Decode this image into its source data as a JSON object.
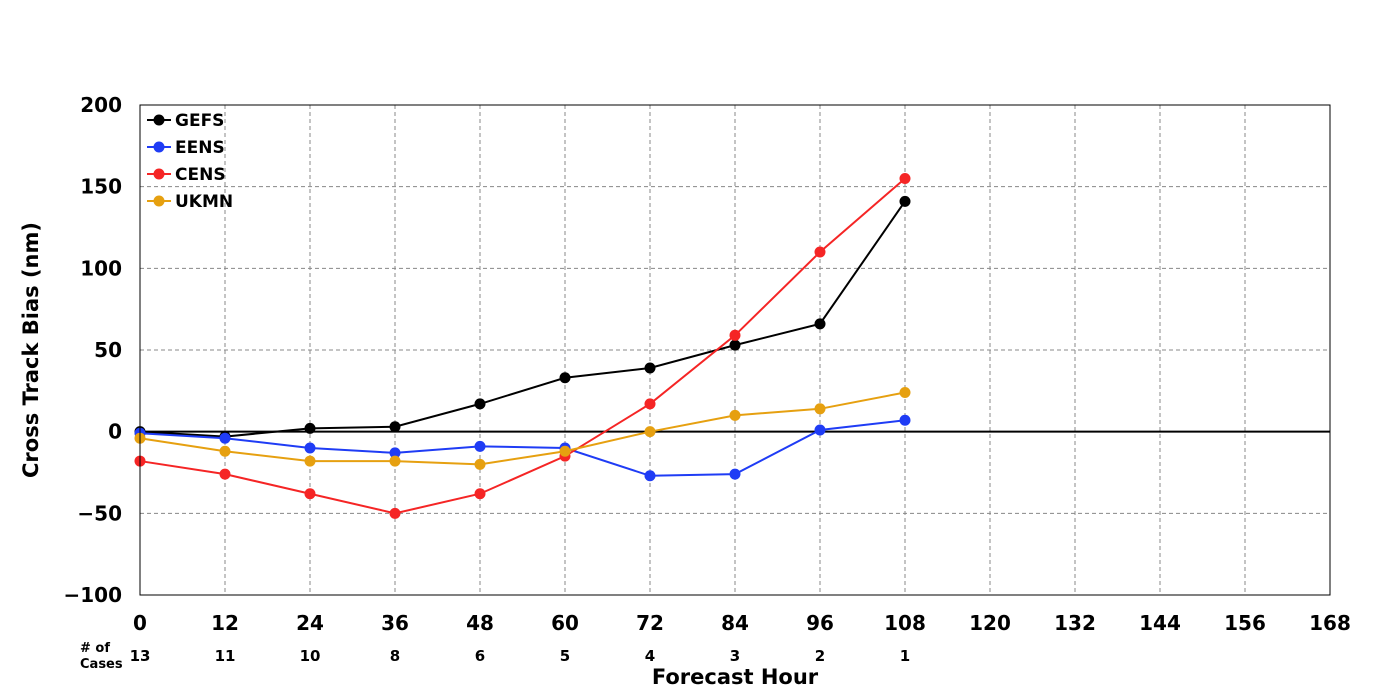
{
  "chart_data": {
    "type": "line",
    "title": "",
    "xlabel": "Forecast Hour",
    "ylabel": "Cross Track Bias (nm)",
    "xlim": [
      0,
      168
    ],
    "ylim": [
      -100,
      200
    ],
    "x_ticks": [
      0,
      12,
      24,
      36,
      48,
      60,
      72,
      84,
      96,
      108,
      120,
      132,
      144,
      156,
      168
    ],
    "y_ticks": [
      -100,
      -50,
      0,
      50,
      100,
      150,
      200
    ],
    "grid": true,
    "legend_position": "top-left",
    "x": [
      0,
      12,
      24,
      36,
      48,
      60,
      72,
      84,
      96,
      108
    ],
    "series": [
      {
        "name": "GEFS",
        "color": "#000000",
        "values": [
          0,
          -3,
          2,
          3,
          17,
          33,
          39,
          53,
          66,
          141
        ]
      },
      {
        "name": "EENS",
        "color": "#1f3cf5",
        "values": [
          -1,
          -4,
          -10,
          -13,
          -9,
          -10,
          -27,
          -26,
          1,
          7
        ]
      },
      {
        "name": "CENS",
        "color": "#f52525",
        "values": [
          -18,
          -26,
          -38,
          -50,
          -38,
          -15,
          17,
          59,
          110,
          155
        ]
      },
      {
        "name": "UKMN",
        "color": "#e6a010",
        "values": [
          -4,
          -12,
          -18,
          -18,
          -20,
          -12,
          0,
          10,
          14,
          24
        ]
      }
    ],
    "cases": {
      "label_line1": "# of",
      "label_line2": "Cases",
      "x": [
        0,
        12,
        24,
        36,
        48,
        60,
        72,
        84,
        96,
        108
      ],
      "values": [
        "13",
        "11",
        "10",
        "8",
        "6",
        "5",
        "4",
        "3",
        "2",
        "1"
      ]
    }
  }
}
